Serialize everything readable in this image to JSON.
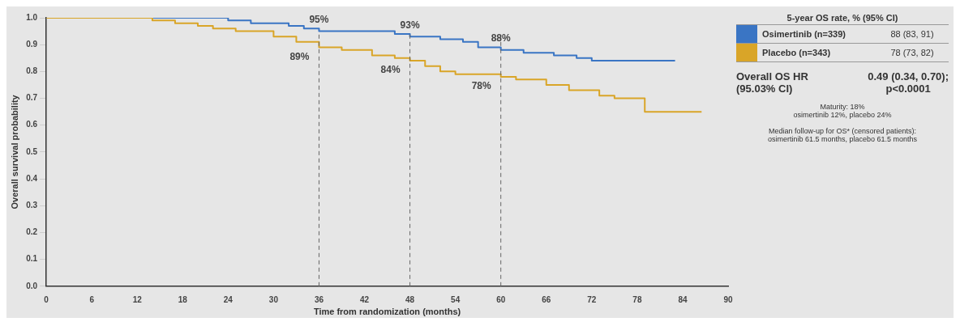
{
  "chart_data": {
    "type": "step",
    "xlabel": "Time from randomization (months)",
    "ylabel": "Overall survival probability",
    "legend_title": "5-year OS rate, % (95% CI)",
    "legend": "right",
    "grid": false,
    "marker": "none",
    "xlim": [
      0,
      90
    ],
    "xticks": [
      0,
      6,
      12,
      18,
      24,
      30,
      36,
      42,
      48,
      54,
      60,
      66,
      72,
      78,
      84,
      90
    ],
    "ylim": [
      0,
      1
    ],
    "yticks": [
      {
        "value": 0,
        "label": "0.0"
      },
      0.1,
      0.2,
      0.3,
      0.4,
      0.5,
      0.6,
      0.7,
      0.8,
      0.9,
      {
        "value": 1,
        "label": "1.0"
      }
    ],
    "series": [
      {
        "name": "Osimertinib (n=339)",
        "color": "#3a75c4",
        "x": [
          0,
          22,
          24,
          27,
          32,
          34,
          36,
          44,
          46,
          48,
          52,
          55,
          57,
          60,
          63,
          67,
          70,
          72,
          83
        ],
        "values": [
          1,
          1,
          0.99,
          0.98,
          0.97,
          0.96,
          0.95,
          0.95,
          0.94,
          0.93,
          0.92,
          0.91,
          0.89,
          0.88,
          0.87,
          0.86,
          0.85,
          0.84,
          0.84
        ]
      },
      {
        "name": "Placebo (n=343)",
        "color": "#d9a528",
        "x": [
          0,
          12,
          14,
          17,
          20,
          22,
          25,
          30,
          33,
          36,
          39,
          43,
          46,
          48,
          50,
          52,
          54,
          60,
          62,
          66,
          69,
          73,
          75,
          79,
          86.5
        ],
        "values": [
          1,
          1,
          0.99,
          0.98,
          0.97,
          0.96,
          0.95,
          0.93,
          0.91,
          0.89,
          0.88,
          0.86,
          0.85,
          0.84,
          0.82,
          0.8,
          0.79,
          0.78,
          0.77,
          0.75,
          0.73,
          0.71,
          0.7,
          0.65,
          0.65
        ]
      }
    ],
    "ref_lines": [
      {
        "axis": "x",
        "value": 36,
        "line_style": "dashed",
        "color": "#666666"
      },
      {
        "axis": "x",
        "value": 48,
        "line_style": "dashed",
        "color": "#666666"
      },
      {
        "axis": "x",
        "value": 60,
        "line_style": "dashed",
        "color": "#666666"
      }
    ],
    "annotations": [
      {
        "text": "95%",
        "x": 36,
        "y": 0.95
      },
      {
        "text": "89%",
        "x": 36,
        "y": 0.89
      },
      {
        "text": "93%",
        "x": 48,
        "y": 0.93
      },
      {
        "text": "84%",
        "x": 48,
        "y": 0.84
      },
      {
        "text": "88%",
        "x": 60,
        "y": 0.88
      },
      {
        "text": "78%",
        "x": 60,
        "y": 0.78
      },
      "88 (83, 91)",
      "78 (73, 82)",
      "Overall OS HR\n(95.03% CI)",
      "0.49 (0.34, 0.70);\np<0.0001",
      "Maturity: 18%\nosimertinib 12%, placebo 24%",
      "Median follow-up for OS* (censored patients):\nosimertinib 61.5 months, placebo 61.5 months"
    ]
  }
}
